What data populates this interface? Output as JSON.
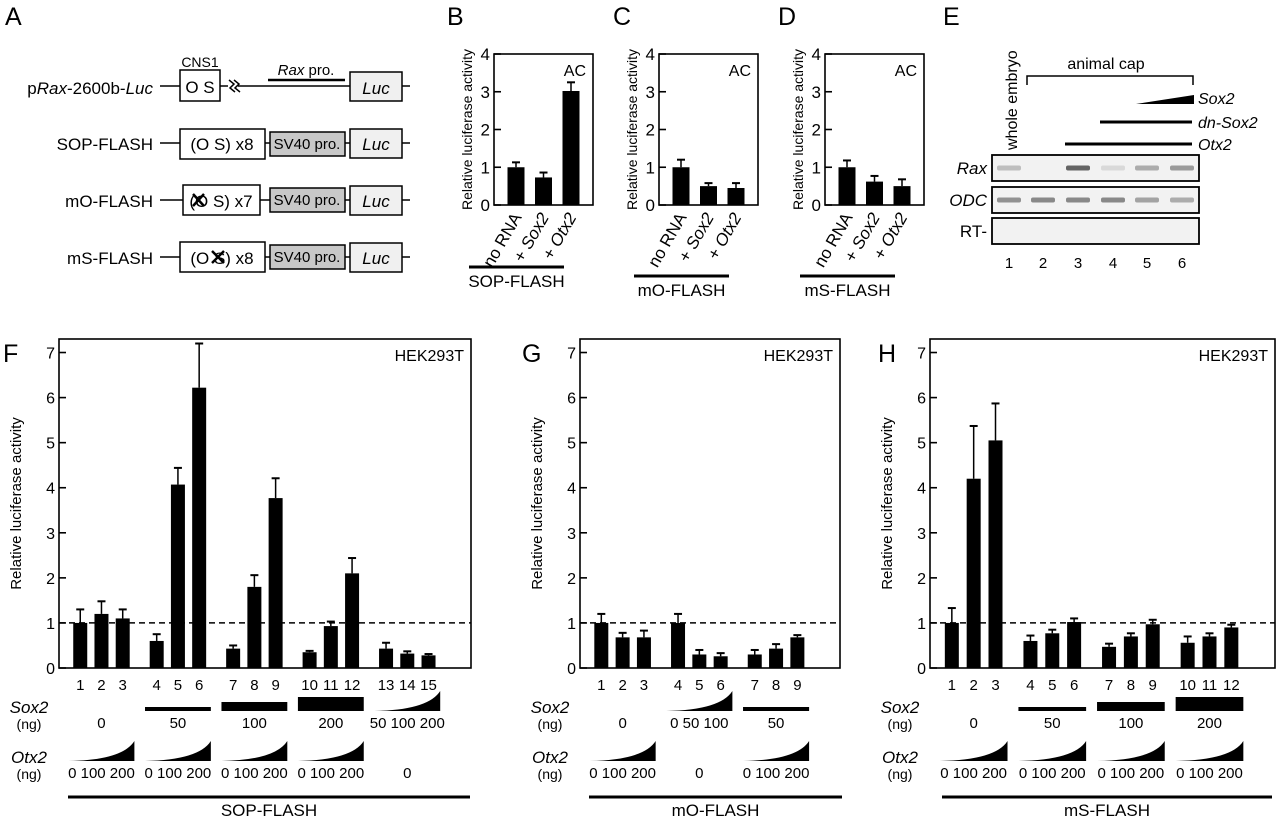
{
  "figure": {
    "panel_labels": [
      "A",
      "B",
      "C",
      "D",
      "E",
      "F",
      "G",
      "H"
    ],
    "panelA": {
      "constructs": [
        {
          "name_parts": [
            {
              "t": "p",
              "i": false
            },
            {
              "t": "Rax",
              "i": true
            },
            {
              "t": "-2600b-",
              "i": false
            },
            {
              "t": "Luc",
              "i": true
            }
          ],
          "element": "O S",
          "element_label": "CNS1",
          "promoter_label_italic": "Rax",
          "promoter_label": " pro.",
          "reporter": "Luc"
        },
        {
          "name": "SOP-FLASH",
          "element": "(O S) x8",
          "promoter": "SV40 pro.",
          "reporter": "Luc"
        },
        {
          "name": "mO-FLASH",
          "element": "(O S) x7",
          "mutated": "O",
          "promoter": "SV40 pro.",
          "reporter": "Luc"
        },
        {
          "name": "mS-FLASH",
          "element": "(O S) x8",
          "mutated": "S",
          "promoter": "SV40 pro.",
          "reporter": "Luc"
        }
      ]
    },
    "panelE": {
      "lane_header": "whole embryo",
      "group_label": "animal cap",
      "treatments": [
        {
          "label": "Sox2",
          "lanes": [
            5,
            6
          ],
          "type": "gradient"
        },
        {
          "label": "dn-Sox2",
          "lanes": [
            4,
            5,
            6
          ],
          "type": "bar"
        },
        {
          "label": "Otx2",
          "lanes": [
            3,
            4,
            5,
            6
          ],
          "type": "bar"
        }
      ],
      "rows": [
        {
          "label": "Rax",
          "italic": true,
          "band_intensity": [
            0.25,
            0,
            0.75,
            0.1,
            0.35,
            0.45
          ]
        },
        {
          "label": "ODC",
          "italic": true,
          "band_intensity": [
            0.5,
            0.55,
            0.55,
            0.55,
            0.4,
            0.35
          ]
        },
        {
          "label": "RT-",
          "italic": false,
          "band_intensity": [
            0,
            0,
            0,
            0,
            0,
            0
          ]
        }
      ],
      "lanes": [
        "1",
        "2",
        "3",
        "4",
        "5",
        "6"
      ]
    }
  },
  "chart_data": [
    {
      "panel": "B",
      "type": "bar",
      "ylabel": "Relative luciferase activity",
      "ylim": [
        0,
        4
      ],
      "yticks": [
        0,
        1,
        2,
        3,
        4
      ],
      "annotation": "AC",
      "categories": [
        [
          "no RNA",
          ""
        ],
        [
          "+ ",
          "Sox2"
        ],
        [
          "+ ",
          "Otx2"
        ]
      ],
      "values": [
        1.0,
        0.73,
        3.02
      ],
      "errors": [
        0.13,
        0.13,
        0.23
      ],
      "group_label": "SOP-FLASH"
    },
    {
      "panel": "C",
      "type": "bar",
      "ylabel": "Relative luciferase activity",
      "ylim": [
        0,
        4
      ],
      "yticks": [
        0,
        1,
        2,
        3,
        4
      ],
      "annotation": "AC",
      "categories": [
        [
          "no RNA",
          ""
        ],
        [
          "+ ",
          "Sox2"
        ],
        [
          "+ ",
          "Otx2"
        ]
      ],
      "values": [
        1.0,
        0.5,
        0.45
      ],
      "errors": [
        0.2,
        0.08,
        0.13
      ],
      "group_label": "mO-FLASH"
    },
    {
      "panel": "D",
      "type": "bar",
      "ylabel": "Relative luciferase activity",
      "ylim": [
        0,
        4
      ],
      "yticks": [
        0,
        1,
        2,
        3,
        4
      ],
      "annotation": "AC",
      "categories": [
        [
          "no RNA",
          ""
        ],
        [
          "+ ",
          "Sox2"
        ],
        [
          "+ ",
          "Otx2"
        ]
      ],
      "values": [
        1.0,
        0.62,
        0.5
      ],
      "errors": [
        0.18,
        0.15,
        0.18
      ],
      "group_label": "mS-FLASH"
    },
    {
      "panel": "F",
      "type": "bar",
      "ylabel": "Relative luciferase activity",
      "ylim": [
        0,
        7.3
      ],
      "yticks": [
        0,
        1,
        2,
        3,
        4,
        5,
        6,
        7
      ],
      "annotation": "HEK293T",
      "reference_line": 1,
      "categories": [
        "1",
        "2",
        "3",
        "4",
        "5",
        "6",
        "7",
        "8",
        "9",
        "10",
        "11",
        "12",
        "13",
        "14",
        "15"
      ],
      "groups": [
        3,
        3,
        3,
        3,
        3
      ],
      "values": [
        1.0,
        1.2,
        1.1,
        0.6,
        4.07,
        6.22,
        0.43,
        1.8,
        3.77,
        0.35,
        0.93,
        2.1,
        0.43,
        0.32,
        0.28
      ],
      "errors": [
        0.3,
        0.28,
        0.2,
        0.15,
        0.37,
        0.98,
        0.07,
        0.26,
        0.44,
        0.03,
        0.1,
        0.34,
        0.13,
        0.05,
        0.03
      ],
      "sox2": {
        "label": "Sox2",
        "unit": "(ng)",
        "groups": [
          {
            "type": "none",
            "label": "0"
          },
          {
            "type": "bar",
            "level": 1,
            "label": "50"
          },
          {
            "type": "bar",
            "level": 2,
            "label": "100"
          },
          {
            "type": "bar",
            "level": 3,
            "label": "200"
          },
          {
            "type": "gradient",
            "label": "50 100 200"
          }
        ]
      },
      "otx2": {
        "label": "Otx2",
        "unit": "(ng)",
        "groups": [
          {
            "type": "gradient",
            "label": "0 100 200"
          },
          {
            "type": "gradient",
            "label": "0 100 200"
          },
          {
            "type": "gradient",
            "label": "0 100 200"
          },
          {
            "type": "gradient",
            "label": "0 100 200"
          },
          {
            "type": "none",
            "label": "0"
          }
        ]
      },
      "group_label": "SOP-FLASH"
    },
    {
      "panel": "G",
      "type": "bar",
      "ylabel": "Relative luciferase activity",
      "ylim": [
        0,
        7.3
      ],
      "yticks": [
        0,
        1,
        2,
        3,
        4,
        5,
        6,
        7
      ],
      "annotation": "HEK293T",
      "reference_line": 1,
      "categories": [
        "1",
        "2",
        "3",
        "4",
        "5",
        "6",
        "7",
        "8",
        "9"
      ],
      "groups": [
        3,
        3,
        3
      ],
      "values": [
        1.0,
        0.68,
        0.68,
        1.0,
        0.3,
        0.26,
        0.3,
        0.43,
        0.68
      ],
      "errors": [
        0.2,
        0.1,
        0.15,
        0.2,
        0.1,
        0.07,
        0.1,
        0.1,
        0.05
      ],
      "sox2": {
        "label": "Sox2",
        "unit": "(ng)",
        "groups": [
          {
            "type": "none",
            "label": "0"
          },
          {
            "type": "gradient",
            "label": "0 50 100"
          },
          {
            "type": "bar",
            "level": 1,
            "label": "50"
          }
        ]
      },
      "otx2": {
        "label": "Otx2",
        "unit": "(ng)",
        "groups": [
          {
            "type": "gradient",
            "label": "0 100 200"
          },
          {
            "type": "none",
            "label": "0"
          },
          {
            "type": "gradient",
            "label": "0 100 200"
          }
        ]
      },
      "group_label": "mO-FLASH"
    },
    {
      "panel": "H",
      "type": "bar",
      "ylabel": "Relative luciferase activity",
      "ylim": [
        0,
        7.3
      ],
      "yticks": [
        0,
        1,
        2,
        3,
        4,
        5,
        6,
        7
      ],
      "annotation": "HEK293T",
      "reference_line": 1,
      "categories": [
        "1",
        "2",
        "3",
        "4",
        "5",
        "6",
        "7",
        "8",
        "9",
        "10",
        "11",
        "12"
      ],
      "groups": [
        3,
        3,
        3,
        3
      ],
      "values": [
        1.0,
        4.2,
        5.05,
        0.6,
        0.77,
        1.02,
        0.47,
        0.7,
        0.97,
        0.56,
        0.7,
        0.9
      ],
      "errors": [
        0.33,
        1.17,
        0.82,
        0.12,
        0.08,
        0.08,
        0.07,
        0.07,
        0.1,
        0.14,
        0.07,
        0.06
      ],
      "sox2": {
        "label": "Sox2",
        "unit": "(ng)",
        "groups": [
          {
            "type": "none",
            "label": "0"
          },
          {
            "type": "bar",
            "level": 1,
            "label": "50"
          },
          {
            "type": "bar",
            "level": 2,
            "label": "100"
          },
          {
            "type": "bar",
            "level": 3,
            "label": "200"
          }
        ]
      },
      "otx2": {
        "label": "Otx2",
        "unit": "(ng)",
        "groups": [
          {
            "type": "gradient",
            "label": "0 100 200"
          },
          {
            "type": "gradient",
            "label": "0 100 200"
          },
          {
            "type": "gradient",
            "label": "0 100 200"
          },
          {
            "type": "gradient",
            "label": "0 100 200"
          }
        ]
      },
      "group_label": "mS-FLASH"
    }
  ]
}
